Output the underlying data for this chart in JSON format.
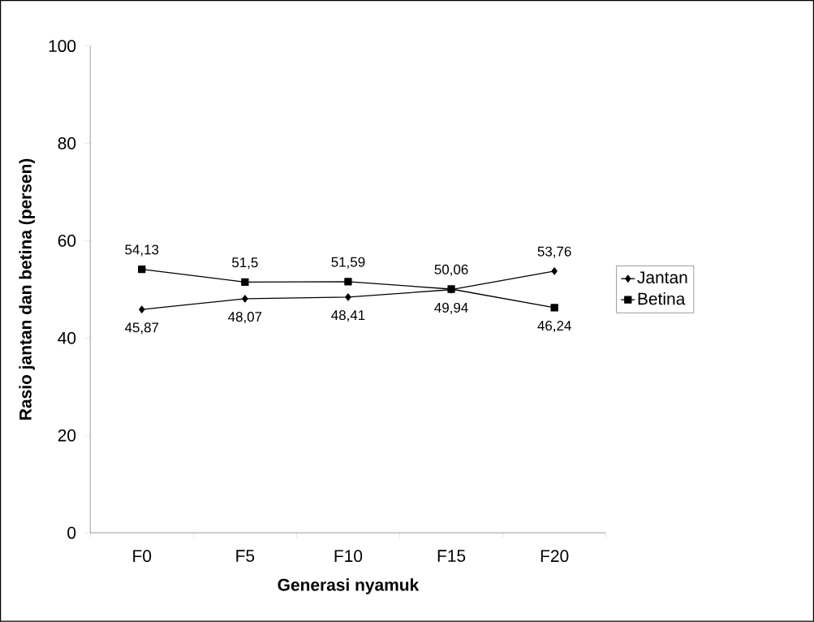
{
  "chart_data": {
    "type": "line",
    "xlabel": "Generasi nyamuk",
    "ylabel": "Rasio jantan dan betina (persen)",
    "categories": [
      "F0",
      "F5",
      "F10",
      "F15",
      "F20"
    ],
    "series": [
      {
        "name": "Jantan",
        "color": "#000000",
        "marker": "diamond",
        "values": [
          45.87,
          48.07,
          48.41,
          49.94,
          53.76
        ],
        "value_labels": [
          "45,87",
          "48,07",
          "48,41",
          "49,94",
          "53,76"
        ]
      },
      {
        "name": "Betina",
        "color": "#000000",
        "marker": "square",
        "values": [
          54.13,
          51.5,
          51.59,
          50.06,
          46.24
        ],
        "value_labels": [
          "54,13",
          "51,5",
          "51,59",
          "50,06",
          "46,24"
        ]
      }
    ],
    "ylim": [
      0,
      100
    ],
    "yticks": [
      0,
      20,
      40,
      60,
      80,
      100
    ],
    "grid": false,
    "legend": "right",
    "line_style": "solid"
  }
}
